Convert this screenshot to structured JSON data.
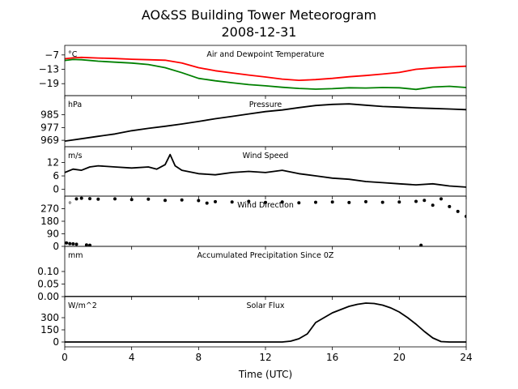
{
  "title_line1": "AO&SS Building Tower Meteorogram",
  "title_line2": "2008-12-31",
  "xlabel": "Time (UTC)",
  "colors": {
    "temperature": "#ff0000",
    "dewpoint": "#008000",
    "default": "#000000"
  },
  "chart_data": [
    {
      "type": "line",
      "title": "Air and Dewpoint Temperature",
      "unit": "°C",
      "x": [
        0,
        0.5,
        1,
        2,
        3,
        4,
        5,
        6,
        7,
        8,
        9,
        10,
        11,
        12,
        13,
        14,
        15,
        16,
        17,
        18,
        19,
        20,
        21,
        22,
        23,
        24
      ],
      "xlim": [
        0,
        24
      ],
      "ylim": [
        -24,
        -3
      ],
      "yticks": [
        -7,
        -13,
        -19
      ],
      "series": [
        {
          "name": "Air Temperature",
          "color": "#ff0000",
          "values": [
            -8.6,
            -8.2,
            -8.0,
            -8.3,
            -8.5,
            -8.8,
            -9.0,
            -9.2,
            -10.4,
            -12.3,
            -13.6,
            -14.5,
            -15.4,
            -16.2,
            -17.1,
            -17.6,
            -17.3,
            -16.8,
            -16.1,
            -15.6,
            -15.0,
            -14.3,
            -13.0,
            -12.4,
            -12.0,
            -11.7
          ]
        },
        {
          "name": "Dewpoint Temperature",
          "color": "#008000",
          "values": [
            -9.3,
            -8.9,
            -9.0,
            -9.6,
            -10.0,
            -10.4,
            -11.0,
            -12.3,
            -14.4,
            -16.8,
            -17.8,
            -18.6,
            -19.4,
            -19.9,
            -20.5,
            -21.0,
            -21.3,
            -21.1,
            -20.7,
            -20.8,
            -20.6,
            -20.7,
            -21.4,
            -20.4,
            -20.1,
            -20.6
          ]
        }
      ]
    },
    {
      "type": "line",
      "title": "Pressure",
      "unit": "hPa",
      "x": [
        0,
        1,
        2,
        3,
        4,
        5,
        6,
        7,
        8,
        9,
        10,
        11,
        12,
        13,
        14,
        15,
        16,
        17,
        18,
        19,
        20,
        21,
        22,
        23,
        24
      ],
      "xlim": [
        0,
        24
      ],
      "ylim": [
        965,
        997
      ],
      "yticks": [
        985,
        977,
        969
      ],
      "series": [
        {
          "name": "Pressure",
          "color": "#000000",
          "values": [
            968.5,
            970.0,
            971.5,
            973.0,
            975.0,
            976.5,
            977.8,
            979.2,
            980.8,
            982.5,
            984.0,
            985.5,
            987.0,
            988.0,
            989.5,
            990.8,
            991.5,
            991.8,
            991.0,
            990.2,
            989.8,
            989.3,
            989.0,
            988.6,
            988.2
          ]
        }
      ]
    },
    {
      "type": "line",
      "title": "Wind Speed",
      "unit": "m/s",
      "x": [
        0,
        0.5,
        1,
        1.5,
        2,
        3,
        4,
        5,
        5.5,
        6,
        6.3,
        6.6,
        7,
        8,
        9,
        10,
        11,
        12,
        13,
        14,
        15,
        16,
        17,
        18,
        19,
        20,
        21,
        22,
        23,
        24
      ],
      "xlim": [
        0,
        24
      ],
      "ylim": [
        -3,
        19
      ],
      "yticks": [
        12,
        6,
        0
      ],
      "series": [
        {
          "name": "Wind Speed",
          "color": "#000000",
          "values": [
            7.5,
            9.0,
            8.5,
            10.0,
            10.5,
            10.0,
            9.5,
            10.0,
            9.0,
            11.0,
            15.5,
            10.5,
            8.5,
            7.0,
            6.5,
            7.5,
            8.0,
            7.5,
            8.5,
            7.0,
            6.0,
            5.0,
            4.5,
            3.5,
            3.0,
            2.5,
            2.0,
            2.5,
            1.5,
            1.0
          ]
        }
      ]
    },
    {
      "type": "scatter",
      "title": "Wind Direction",
      "unit": "°",
      "x": [
        0.1,
        0.3,
        0.5,
        0.7,
        1.3,
        1.5,
        0.7,
        1,
        1.5,
        2,
        3,
        4,
        5,
        6,
        7,
        8,
        8.5,
        9,
        10,
        11,
        12,
        13,
        14,
        15,
        16,
        17,
        18,
        19,
        20,
        21,
        21.5,
        22,
        22.5,
        23,
        23.5,
        24,
        21.3
      ],
      "xlim": [
        0,
        24
      ],
      "ylim": [
        0,
        360
      ],
      "yticks": [
        270,
        180,
        90,
        0
      ],
      "series": [
        {
          "name": "Wind Direction",
          "color": "#000000",
          "values": [
            25,
            20,
            18,
            15,
            10,
            8,
            340,
            345,
            342,
            338,
            340,
            335,
            338,
            330,
            332,
            328,
            310,
            320,
            318,
            322,
            315,
            318,
            312,
            316,
            318,
            314,
            320,
            316,
            318,
            322,
            330,
            295,
            340,
            285,
            250,
            215,
            8
          ]
        }
      ]
    },
    {
      "type": "line",
      "title": "Accumulated Precipitation Since 0Z",
      "unit": "mm",
      "x": [
        0,
        24
      ],
      "xlim": [
        0,
        24
      ],
      "ylim": [
        0,
        0.2
      ],
      "yticks": [
        0.1,
        0.05,
        0.0
      ],
      "series": [
        {
          "name": "Precipitation",
          "color": "#000000",
          "values": [
            0,
            0
          ]
        }
      ]
    },
    {
      "type": "line",
      "title": "Solar Flux",
      "unit": "W/m^2",
      "x": [
        0,
        13,
        13.5,
        14,
        14.5,
        15,
        15.5,
        16,
        16.5,
        17,
        17.5,
        18,
        18.5,
        19,
        19.5,
        20,
        20.5,
        21,
        21.5,
        22,
        22.5,
        23,
        24
      ],
      "xlim": [
        0,
        24
      ],
      "ylim": [
        -60,
        560
      ],
      "yticks": [
        300,
        150,
        0
      ],
      "series": [
        {
          "name": "Solar Flux",
          "color": "#000000",
          "values": [
            0,
            0,
            10,
            40,
            100,
            240,
            300,
            360,
            400,
            440,
            465,
            480,
            475,
            455,
            420,
            370,
            300,
            220,
            130,
            50,
            5,
            0,
            0
          ]
        }
      ]
    }
  ],
  "xticks": [
    0,
    4,
    8,
    12,
    16,
    20,
    24
  ]
}
